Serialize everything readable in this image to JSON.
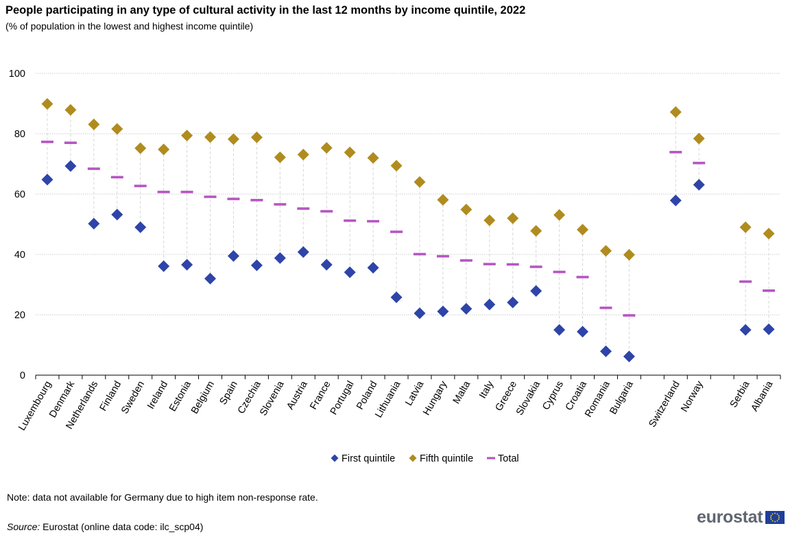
{
  "header": {
    "title": "People participating in any type of cultural activity in the last 12 months by income quintile, 2022",
    "subtitle": "(% of population in the lowest and highest income quintile)"
  },
  "footer": {
    "note": "Note: data not available for Germany due to high item non-response rate.",
    "source_label": "Source:",
    "source_text": " Eurostat (online data code: ilc_scp04)",
    "logo_text": "eurostat"
  },
  "colors": {
    "first_quintile": "#2e44a8",
    "fifth_quintile": "#b08c1f",
    "total": "#b656c2",
    "grid": "#bdbdbd"
  },
  "chart_data": {
    "type": "scatter",
    "title": "People participating in any type of cultural activity in the last 12 months by income quintile, 2022",
    "subtitle": "(% of population in the lowest and highest income quintile)",
    "ylim": [
      0,
      100
    ],
    "yticks": [
      0,
      20,
      40,
      60,
      80,
      100
    ],
    "grid": true,
    "legend_position": "bottom",
    "categories": [
      "Luxembourg",
      "Denmark",
      "Netherlands",
      "Finland",
      "Sweden",
      "Ireland",
      "Estonia",
      "Belgium",
      "Spain",
      "Czechia",
      "Slovenia",
      "Austria",
      "France",
      "Portugal",
      "Poland",
      "Lithuania",
      "Latvia",
      "Hungary",
      "Malta",
      "Italy",
      "Greece",
      "Slovakia",
      "Cyprus",
      "Croatia",
      "Romania",
      "Bulgaria",
      "",
      "Switzerland",
      "Norway",
      "",
      "Serbia",
      "Albania"
    ],
    "series": [
      {
        "name": "First quintile",
        "marker": "diamond",
        "values": [
          64.8,
          69.3,
          50.2,
          53.2,
          49.0,
          36.1,
          36.6,
          32.0,
          39.5,
          36.4,
          38.8,
          40.8,
          36.6,
          34.1,
          35.6,
          25.8,
          20.5,
          21.1,
          22.0,
          23.4,
          24.1,
          27.9,
          15.0,
          14.4,
          7.9,
          6.2,
          null,
          57.9,
          63.1,
          null,
          15.0,
          15.2
        ]
      },
      {
        "name": "Fifth quintile",
        "marker": "diamond",
        "values": [
          89.9,
          87.9,
          83.1,
          81.6,
          75.2,
          74.8,
          79.4,
          78.9,
          78.2,
          78.8,
          72.2,
          73.1,
          75.3,
          73.8,
          72.0,
          69.4,
          64.0,
          58.1,
          54.9,
          51.3,
          52.0,
          47.8,
          53.1,
          48.2,
          41.2,
          39.9,
          null,
          87.2,
          78.4,
          null,
          49.0,
          46.9
        ]
      },
      {
        "name": "Total",
        "marker": "dash",
        "values": [
          77.3,
          77.0,
          68.4,
          65.6,
          62.7,
          60.7,
          60.7,
          59.1,
          58.4,
          58.0,
          56.6,
          55.2,
          54.3,
          51.2,
          51.0,
          47.5,
          40.1,
          39.4,
          38.0,
          36.8,
          36.7,
          35.9,
          34.2,
          32.5,
          22.3,
          19.8,
          null,
          73.9,
          70.3,
          null,
          31.0,
          28.0
        ]
      }
    ]
  }
}
